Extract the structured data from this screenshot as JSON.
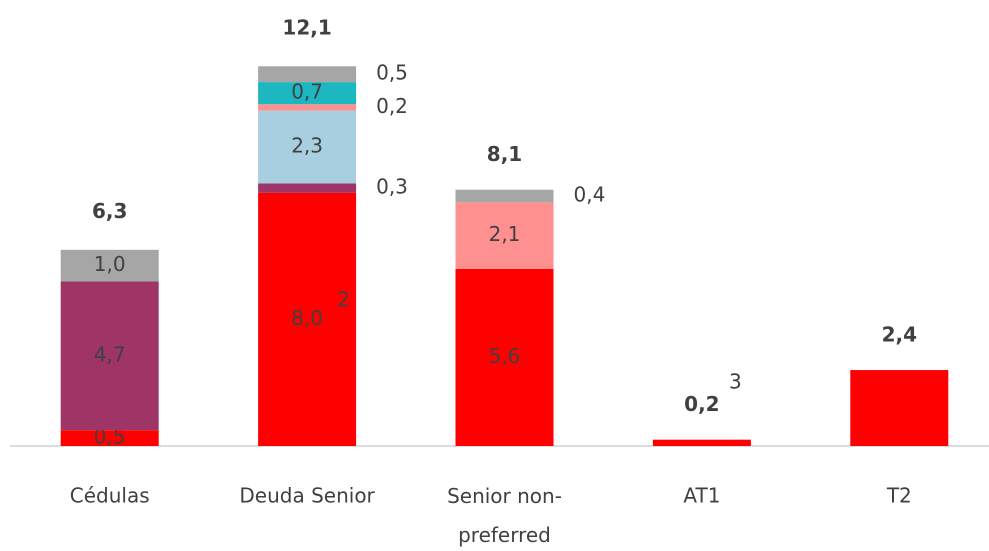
{
  "chart_data": {
    "type": "stacked_bar",
    "categories": [
      "Cédulas",
      "Deuda Senior",
      "Senior non-preferred",
      "AT1",
      "T2"
    ],
    "series": [
      {
        "color": "#ff0000",
        "values": [
          0.5,
          8.0,
          5.6,
          0.2,
          2.4
        ],
        "value_labels": [
          "0,5",
          "8,0",
          "5,6",
          null,
          null
        ]
      },
      {
        "color": "#9e3566",
        "values": [
          4.7,
          0.3,
          null,
          null,
          null
        ],
        "value_labels": [
          "4,7",
          "0,3",
          null,
          null,
          null
        ]
      },
      {
        "color": "#a8cfe0",
        "values": [
          null,
          2.3,
          null,
          null,
          null
        ],
        "value_labels": [
          null,
          "2,3",
          null,
          null,
          null
        ]
      },
      {
        "color": "#ff9090",
        "values": [
          null,
          0.2,
          2.1,
          null,
          null
        ],
        "value_labels": [
          null,
          "0,2",
          "2,1",
          null,
          null
        ]
      },
      {
        "color": "#1db7c2",
        "values": [
          null,
          0.7,
          null,
          null,
          null
        ],
        "value_labels": [
          null,
          "0,7",
          null,
          null,
          null
        ]
      },
      {
        "color": "#a6a6a6",
        "values": [
          1.0,
          0.5,
          0.4,
          null,
          null
        ],
        "value_labels": [
          "1,0",
          "0,5",
          "0,4",
          null,
          null
        ]
      }
    ],
    "totals": [
      6.3,
      12.1,
      8.1,
      0.2,
      2.4
    ],
    "total_labels": [
      "6,3",
      "12,1",
      "8,1",
      "0,2",
      "2,4"
    ],
    "annotations": [
      "2",
      "3"
    ],
    "ylim": [
      0,
      14
    ]
  }
}
